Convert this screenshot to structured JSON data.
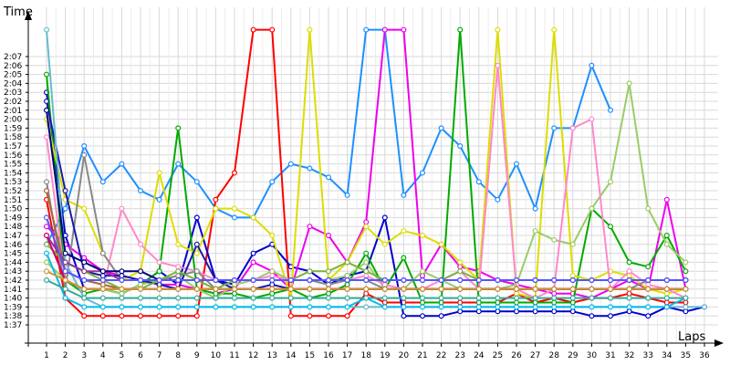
{
  "chart_data": {
    "type": "line",
    "ylabel": "Time",
    "xlabel": "Laps",
    "grid": true,
    "x_ticks": [
      "1",
      "2",
      "3",
      "4",
      "5",
      "6",
      "7",
      "8",
      "9",
      "10",
      "11",
      "12",
      "13",
      "14",
      "15",
      "16",
      "17",
      "18",
      "19",
      "20",
      "21",
      "22",
      "23",
      "24",
      "25",
      "26",
      "27",
      "28",
      "29",
      "30",
      "31",
      "32",
      "33",
      "34",
      "35",
      "36"
    ],
    "y_ticks": [
      "1:37",
      "1:38",
      "1:39",
      "1:40",
      "1:41",
      "1:42",
      "1:43",
      "1:44",
      "1:45",
      "1:46",
      "1:47",
      "1:48",
      "1:49",
      "1:50",
      "1:51",
      "1:52",
      "1:53",
      "1:54",
      "1:55",
      "1:56",
      "1:57",
      "1:58",
      "1:59",
      "2:00",
      "2:01",
      "2:02",
      "2:03",
      "2:04",
      "2:05",
      "2:06",
      "2:07"
    ],
    "xlim": [
      1,
      36
    ],
    "ylim_seconds": [
      96,
      130
    ],
    "y_unit": "m:ss lap time",
    "series": [
      {
        "color": "#1e90ff",
        "values": [
          106,
          110,
          117,
          113,
          115,
          112,
          111,
          115,
          113,
          110,
          109,
          109,
          113,
          115,
          114.5,
          113.5,
          111.5,
          130,
          130,
          111.5,
          114,
          119,
          117,
          113,
          111,
          115,
          110,
          119,
          119,
          126,
          121
        ]
      },
      {
        "color": "#ff0000",
        "values": [
          111,
          100,
          98,
          98,
          98,
          98,
          98,
          98,
          98,
          111,
          114,
          130,
          130,
          98,
          98,
          98,
          98,
          100.5,
          99.5,
          99.5,
          99.5,
          99.5,
          99.5,
          99.5,
          99.5,
          100.5,
          99.5,
          100,
          99.5,
          100,
          100,
          100.5,
          100,
          99.5,
          99.5
        ]
      },
      {
        "color": "#0000cc",
        "values": [
          123,
          107,
          101,
          101,
          100.5,
          101.5,
          103,
          101.5,
          109,
          102,
          101.5,
          105,
          106,
          103.5,
          103,
          101.5,
          102.5,
          103,
          109,
          98,
          98,
          98,
          98.5,
          98.5,
          98.5,
          98.5,
          98.5,
          98.5,
          98.5,
          98,
          98,
          98.5,
          98,
          99,
          98.5,
          99
        ]
      },
      {
        "color": "#ee00ee",
        "values": [
          108,
          106,
          104.5,
          103,
          102.5,
          102,
          101.5,
          101.5,
          101,
          100.5,
          101,
          104,
          103,
          101,
          108,
          107,
          104,
          108.5,
          130,
          130,
          102.5,
          106,
          103.5,
          103,
          102,
          101.5,
          101,
          100.5,
          100.5,
          100,
          101,
          102,
          101,
          111,
          101
        ]
      },
      {
        "color": "#00aa00",
        "values": [
          125,
          102,
          100.5,
          101,
          100.5,
          101.5,
          103,
          119,
          101,
          100.5,
          100.5,
          100,
          100.5,
          101,
          100,
          100.5,
          101.5,
          105,
          101,
          104.5,
          99.5,
          99.5,
          130,
          99.5,
          99.5,
          99.5,
          99.5,
          99.5,
          99.5,
          110,
          108,
          104,
          103.5,
          107,
          103
        ]
      },
      {
        "color": "#dddd00",
        "values": [
          120,
          111,
          110,
          105,
          102,
          103,
          114,
          106,
          105,
          110,
          110,
          109,
          107,
          100,
          130,
          102,
          104,
          108,
          106,
          107.5,
          107,
          106,
          104,
          102,
          130,
          100.5,
          100,
          130,
          102.5,
          102,
          103,
          102.5,
          101,
          100.5,
          101
        ]
      },
      {
        "color": "#99cc66",
        "values": [
          104,
          102,
          101,
          101,
          100.5,
          101.5,
          102,
          102.5,
          101,
          100,
          101.5,
          102,
          103,
          102,
          102,
          102,
          102.5,
          104,
          101,
          101,
          103,
          102,
          101,
          101,
          101,
          101.5,
          107.5,
          106.5,
          106,
          110,
          113,
          124,
          110,
          106,
          104
        ]
      },
      {
        "color": "#ff88cc",
        "values": [
          118,
          102,
          101,
          101,
          110,
          106,
          104,
          103.5,
          103,
          102,
          102,
          102,
          102.5,
          102,
          102,
          102,
          102,
          102.5,
          101.5,
          101,
          101,
          102,
          103,
          101,
          126,
          101,
          100,
          101,
          119,
          120,
          101,
          103,
          101.5,
          101,
          100
        ]
      },
      {
        "color": "#888888",
        "values": [
          113,
          101,
          116,
          105,
          102,
          102,
          102,
          102.5,
          103,
          101,
          102,
          102,
          102,
          102,
          102,
          101.5,
          102,
          102,
          101,
          101,
          101,
          101,
          101,
          101,
          101,
          101,
          101,
          101,
          101,
          101,
          101,
          101,
          102,
          102,
          102
        ]
      },
      {
        "color": "#aa6633",
        "values": [
          112,
          103,
          102,
          101.5,
          101,
          101,
          101,
          101,
          101,
          101,
          101,
          101,
          101,
          101,
          101,
          101,
          101,
          101,
          101,
          101,
          101,
          101,
          101,
          101,
          101,
          101,
          101,
          101,
          101,
          101,
          101,
          101,
          101,
          101,
          101
        ]
      },
      {
        "color": "#1a1aaa",
        "values": [
          122,
          112,
          103,
          102.5,
          102.5,
          102,
          101.5,
          101,
          106,
          102,
          101,
          101,
          101.5,
          101,
          101,
          101,
          101,
          101,
          101,
          101,
          101,
          101,
          101,
          101,
          101,
          101,
          101,
          101,
          101,
          101,
          101,
          101,
          101,
          101,
          101
        ]
      },
      {
        "color": "#66bbcc",
        "values": [
          130,
          104,
          100,
          99,
          99,
          99,
          99,
          99,
          99,
          99,
          99,
          99,
          99,
          99,
          99,
          99,
          99,
          99,
          99,
          99,
          99,
          99,
          99,
          99,
          99,
          99,
          99,
          99,
          99,
          99,
          99,
          99,
          99,
          99,
          99,
          99
        ]
      },
      {
        "color": "#7ab33a",
        "values": [
          106,
          104,
          103,
          102,
          101,
          101,
          102,
          103,
          102,
          101,
          102,
          102,
          102,
          102,
          103,
          103,
          104,
          103,
          102,
          102,
          102,
          102,
          103,
          102,
          102,
          102,
          102,
          102,
          102,
          102,
          102,
          102,
          102,
          102,
          102
        ]
      },
      {
        "color": "#00bbee",
        "values": [
          105,
          100,
          99,
          99,
          99,
          99,
          99,
          99,
          99,
          99,
          99,
          99,
          99,
          99,
          99,
          99,
          99,
          100,
          99,
          99,
          99,
          99,
          99,
          99,
          99,
          99,
          99,
          99,
          99,
          99,
          99,
          99,
          99,
          99,
          100
        ]
      },
      {
        "color": "#993399",
        "values": [
          107,
          104,
          103,
          103,
          102,
          102,
          102,
          102,
          102,
          102,
          102,
          102,
          102,
          102,
          102,
          102,
          102,
          102,
          102,
          102,
          102,
          102,
          102,
          102,
          102,
          102,
          102,
          102,
          102,
          102,
          102,
          102,
          102,
          102,
          102
        ]
      },
      {
        "color": "#000080",
        "values": [
          121,
          105,
          104,
          103,
          103,
          103,
          102,
          102,
          102,
          102,
          102,
          102,
          102,
          102,
          102,
          102,
          102,
          102,
          102,
          102,
          102,
          102,
          102,
          102,
          102,
          102,
          102,
          102,
          102,
          102,
          102,
          102,
          102,
          102,
          102
        ]
      },
      {
        "color": "#cc0066",
        "values": [
          107,
          102,
          101,
          101,
          101,
          101,
          101,
          101,
          101,
          101,
          101,
          101,
          101,
          101,
          101,
          101,
          101,
          101,
          101,
          101,
          101,
          101,
          101,
          101,
          101,
          101,
          101,
          101,
          101,
          101,
          101,
          101,
          101,
          101,
          101
        ]
      },
      {
        "color": "#33aa99",
        "values": [
          102,
          101,
          100,
          100,
          100,
          100,
          100,
          100,
          100,
          100,
          100,
          100,
          100,
          100,
          100,
          100,
          100,
          100,
          100,
          100,
          100,
          100,
          100,
          100,
          100,
          100,
          100,
          100,
          100,
          100,
          100,
          100,
          100,
          100,
          100
        ]
      },
      {
        "color": "#cc9933",
        "values": [
          103,
          102,
          101,
          101,
          101,
          101,
          101,
          101,
          101,
          101,
          101,
          101,
          101,
          101,
          101,
          101,
          101,
          101,
          101,
          101,
          101,
          101,
          101,
          101,
          101,
          101,
          101,
          101,
          101,
          101,
          101,
          101,
          101,
          101,
          101
        ]
      },
      {
        "color": "#5555ff",
        "values": [
          109,
          103,
          102,
          102,
          102,
          102,
          102,
          102,
          102,
          102,
          102,
          102,
          102,
          102,
          102,
          102,
          102,
          102,
          102,
          102,
          102,
          102,
          102,
          102,
          102,
          102,
          102,
          102,
          102,
          102,
          102,
          102,
          102,
          102,
          102
        ]
      }
    ]
  }
}
